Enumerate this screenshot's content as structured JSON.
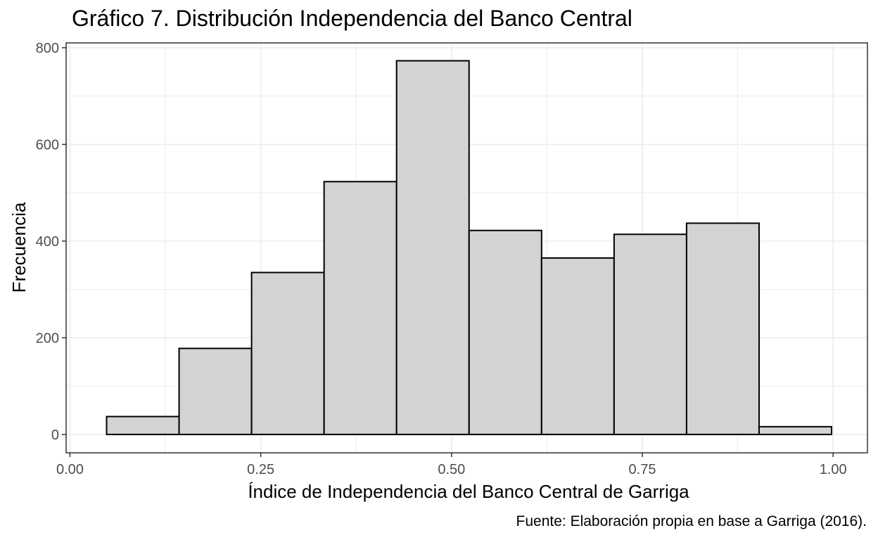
{
  "chart_data": {
    "type": "bar",
    "title": "Gráfico 7. Distribución Independencia del Banco Central",
    "xlabel": "Índice de Independencia del Banco Central de Garriga",
    "ylabel": "Frecuencia",
    "caption": "Fuente: Elaboración propia en base a Garriga (2016).",
    "xlim": [
      -0.005,
      1.045
    ],
    "ylim": [
      -38,
      810
    ],
    "x_ticks": [
      0.0,
      0.25,
      0.5,
      0.75,
      1.0
    ],
    "x_tick_labels": [
      "0.00",
      "0.25",
      "0.50",
      "0.75",
      "1.00"
    ],
    "y_ticks": [
      0,
      200,
      400,
      600,
      800
    ],
    "y_tick_labels": [
      "0",
      "200",
      "400",
      "600",
      "800"
    ],
    "bin_width": 0.095,
    "bins": [
      {
        "x_start": 0.048,
        "x_end": 0.143,
        "count": 37
      },
      {
        "x_start": 0.143,
        "x_end": 0.238,
        "count": 178
      },
      {
        "x_start": 0.238,
        "x_end": 0.333,
        "count": 335
      },
      {
        "x_start": 0.333,
        "x_end": 0.428,
        "count": 523
      },
      {
        "x_start": 0.428,
        "x_end": 0.523,
        "count": 773
      },
      {
        "x_start": 0.523,
        "x_end": 0.618,
        "count": 422
      },
      {
        "x_start": 0.618,
        "x_end": 0.713,
        "count": 365
      },
      {
        "x_start": 0.713,
        "x_end": 0.808,
        "count": 414
      },
      {
        "x_start": 0.808,
        "x_end": 0.903,
        "count": 437
      },
      {
        "x_start": 0.903,
        "x_end": 0.998,
        "count": 16
      }
    ],
    "bar_fill": "#d3d3d3",
    "bar_stroke": "#000000",
    "grid": true,
    "grid_color": "#ebebeb",
    "panel_border_color": "#333333"
  }
}
